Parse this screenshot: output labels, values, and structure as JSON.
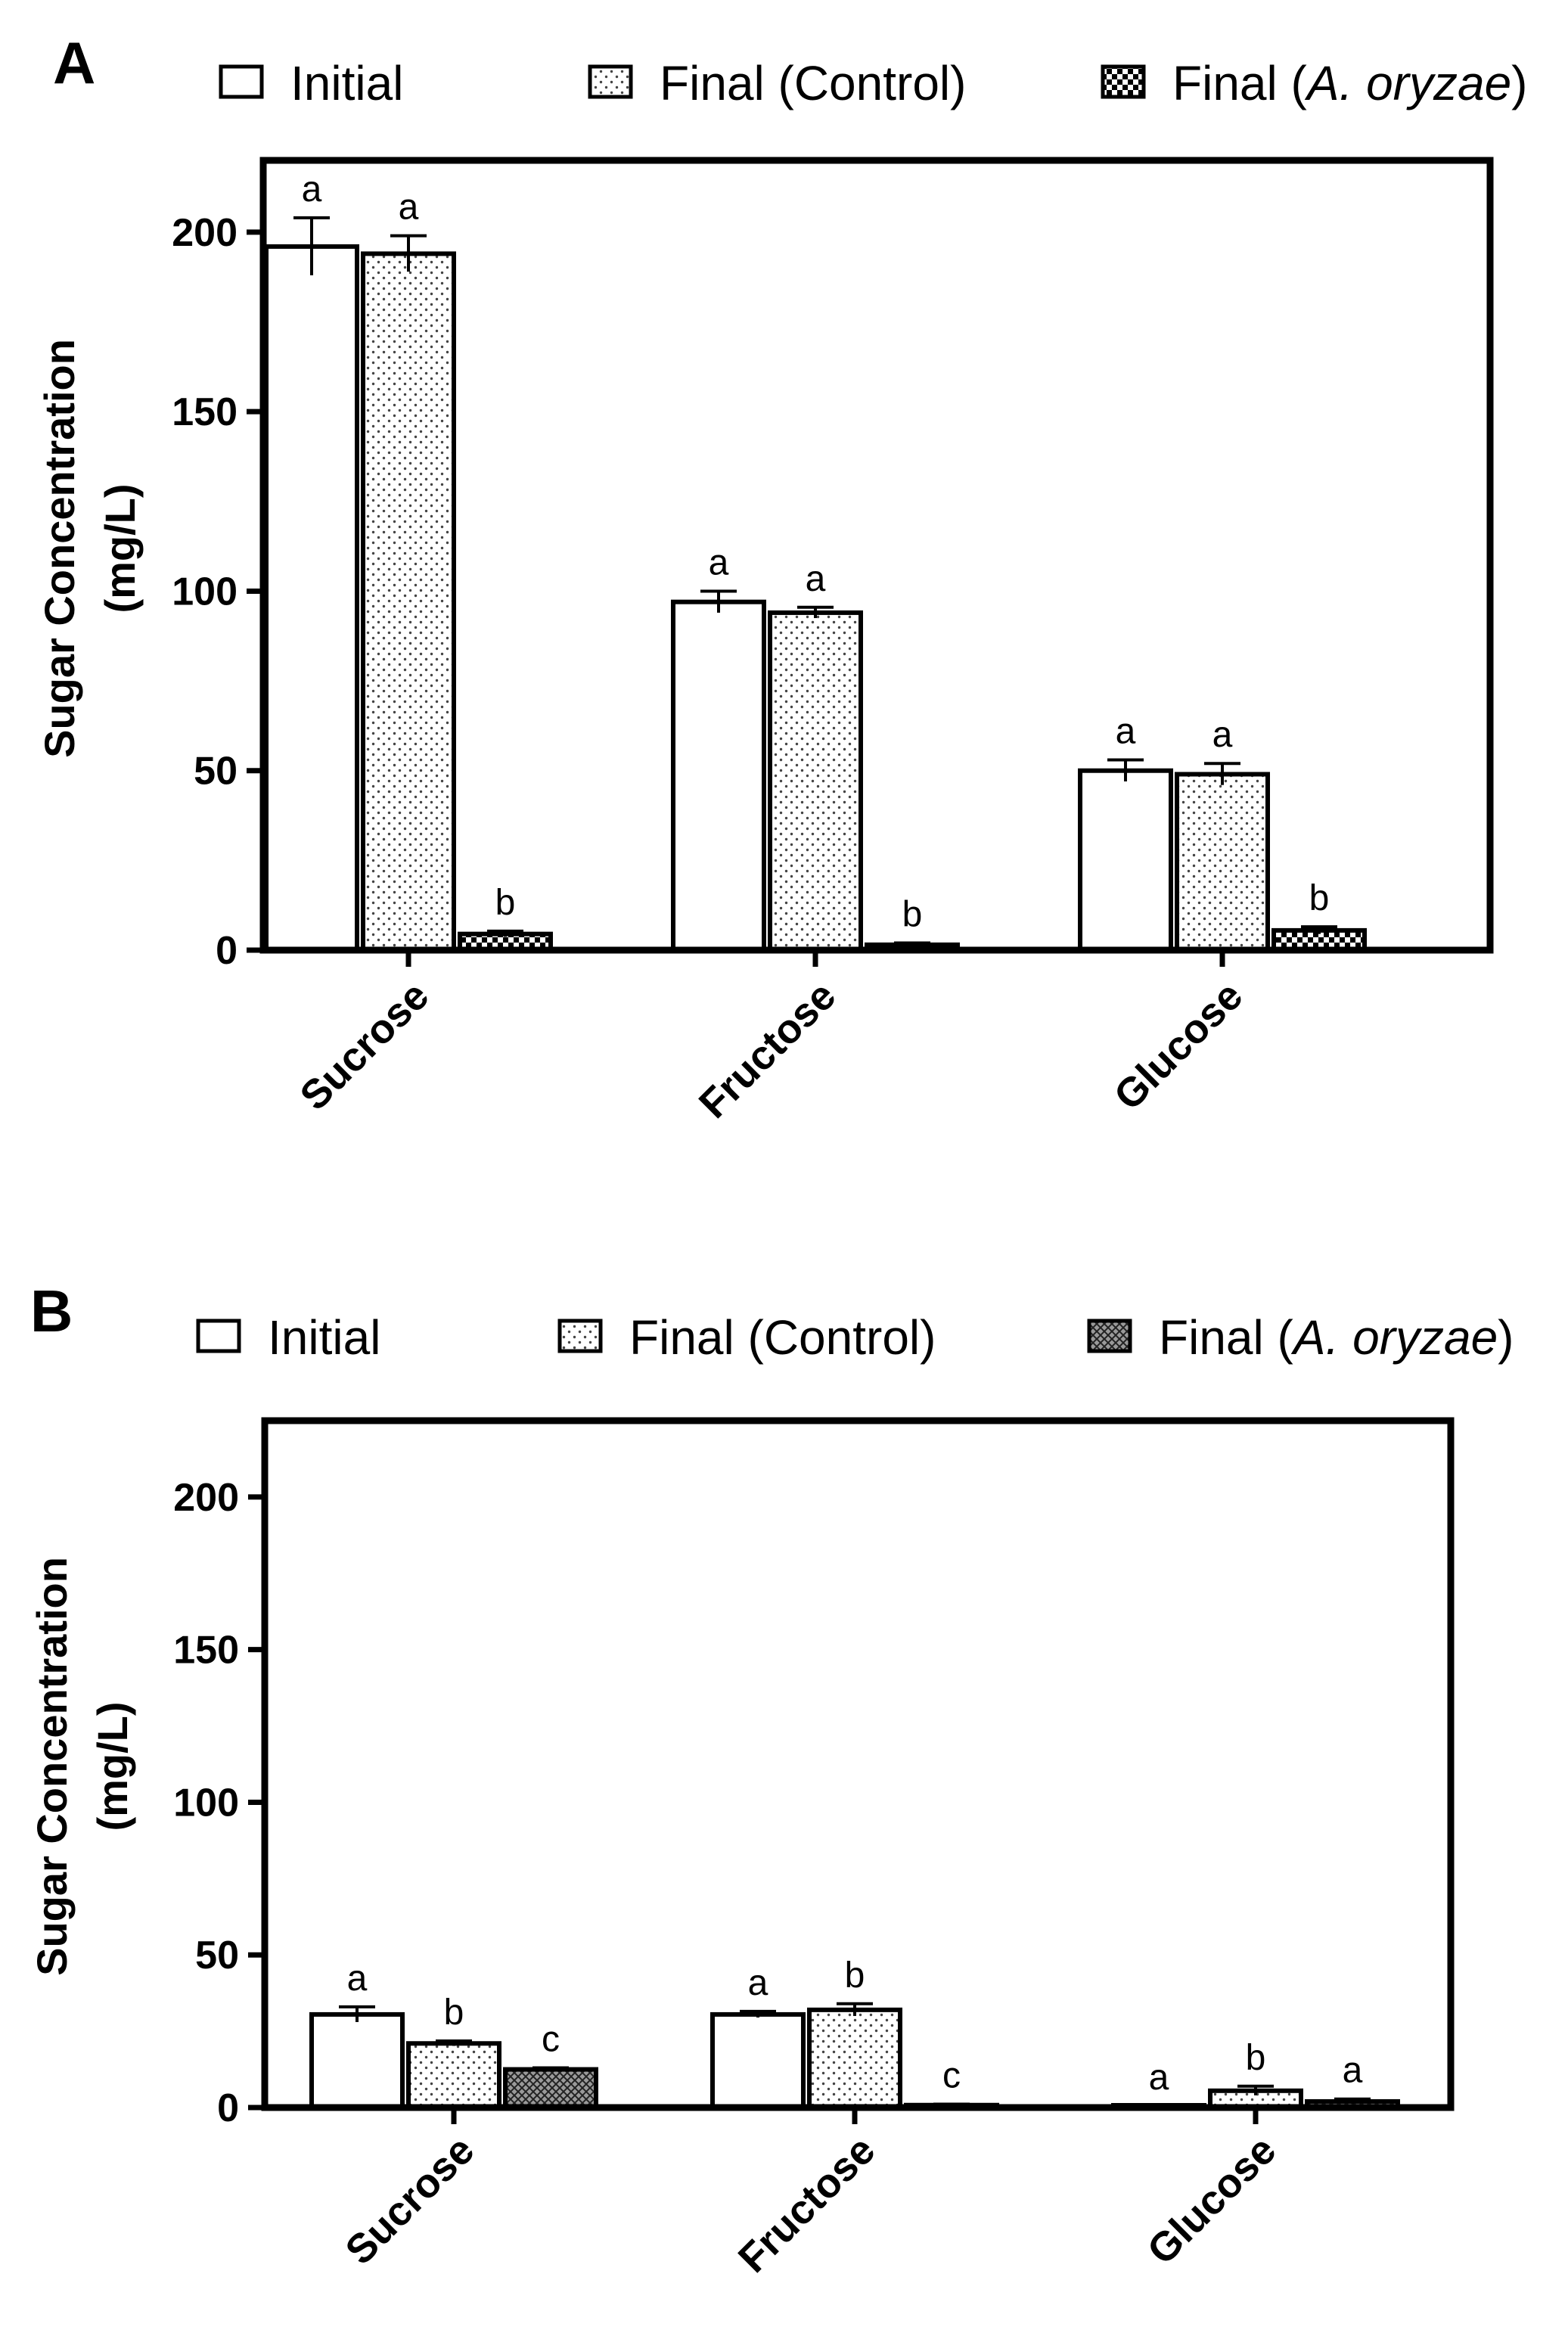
{
  "chart_data": [
    {
      "panel": "A",
      "type": "bar",
      "ylabel": [
        "Sugar Concentration",
        "(mg/L)"
      ],
      "ylim": [
        0,
        220
      ],
      "yticks": [
        0,
        50,
        100,
        150,
        200
      ],
      "categories": [
        "Sucrose",
        "Fructose",
        "Glucose"
      ],
      "legend": {
        "placement": "top",
        "entries": [
          {
            "text": "Initial",
            "pattern": "none"
          },
          {
            "text": "Final (Control)",
            "pattern": "dots"
          },
          {
            "prefix": "Final (",
            "italic": "A. oryzae",
            "suffix": ")",
            "pattern": "checker"
          }
        ]
      },
      "series": [
        {
          "name": "Initial",
          "values": [
            196,
            97,
            50
          ],
          "errors": [
            8,
            3,
            3
          ],
          "labels": [
            "a",
            "a",
            "a"
          ]
        },
        {
          "name": "Final (Control)",
          "values": [
            194,
            94,
            49
          ],
          "errors": [
            5,
            1.5,
            3
          ],
          "labels": [
            "a",
            "a",
            "a"
          ]
        },
        {
          "name": "Final (A. oryzae)",
          "values": [
            4.5,
            1.5,
            5.5
          ],
          "errors": [
            0.8,
            0.5,
            1
          ],
          "labels": [
            "b",
            "b",
            "b"
          ]
        }
      ]
    },
    {
      "panel": "B",
      "type": "bar",
      "ylabel": [
        "Sugar Concentration",
        "(mg/L)"
      ],
      "ylim": [
        0,
        225
      ],
      "yticks": [
        0,
        50,
        100,
        150,
        200
      ],
      "categories": [
        "Sucrose",
        "Fructose",
        "Glucose"
      ],
      "legend": {
        "placement": "top",
        "entries": [
          {
            "text": "Initial",
            "pattern": "none"
          },
          {
            "text": "Final (Control)",
            "pattern": "dots"
          },
          {
            "prefix": "Final (",
            "italic": "A. oryzae",
            "suffix": ")",
            "pattern": "crosshatch"
          }
        ]
      },
      "series": [
        {
          "name": "Initial",
          "values": [
            30.5,
            30.5,
            0.3
          ],
          "errors": [
            2.5,
            1,
            0.2
          ],
          "labels": [
            "a",
            "a",
            "a"
          ]
        },
        {
          "name": "Final (Control)",
          "values": [
            21,
            32,
            5.5
          ],
          "errors": [
            0.8,
            2,
            1.5
          ],
          "labels": [
            "b",
            "b",
            "b"
          ]
        },
        {
          "name": "Final (A. oryzae)",
          "values": [
            12.5,
            0.8,
            2
          ],
          "errors": [
            0.5,
            0.3,
            0.8
          ],
          "labels": [
            "c",
            "c",
            "a"
          ]
        }
      ]
    }
  ]
}
